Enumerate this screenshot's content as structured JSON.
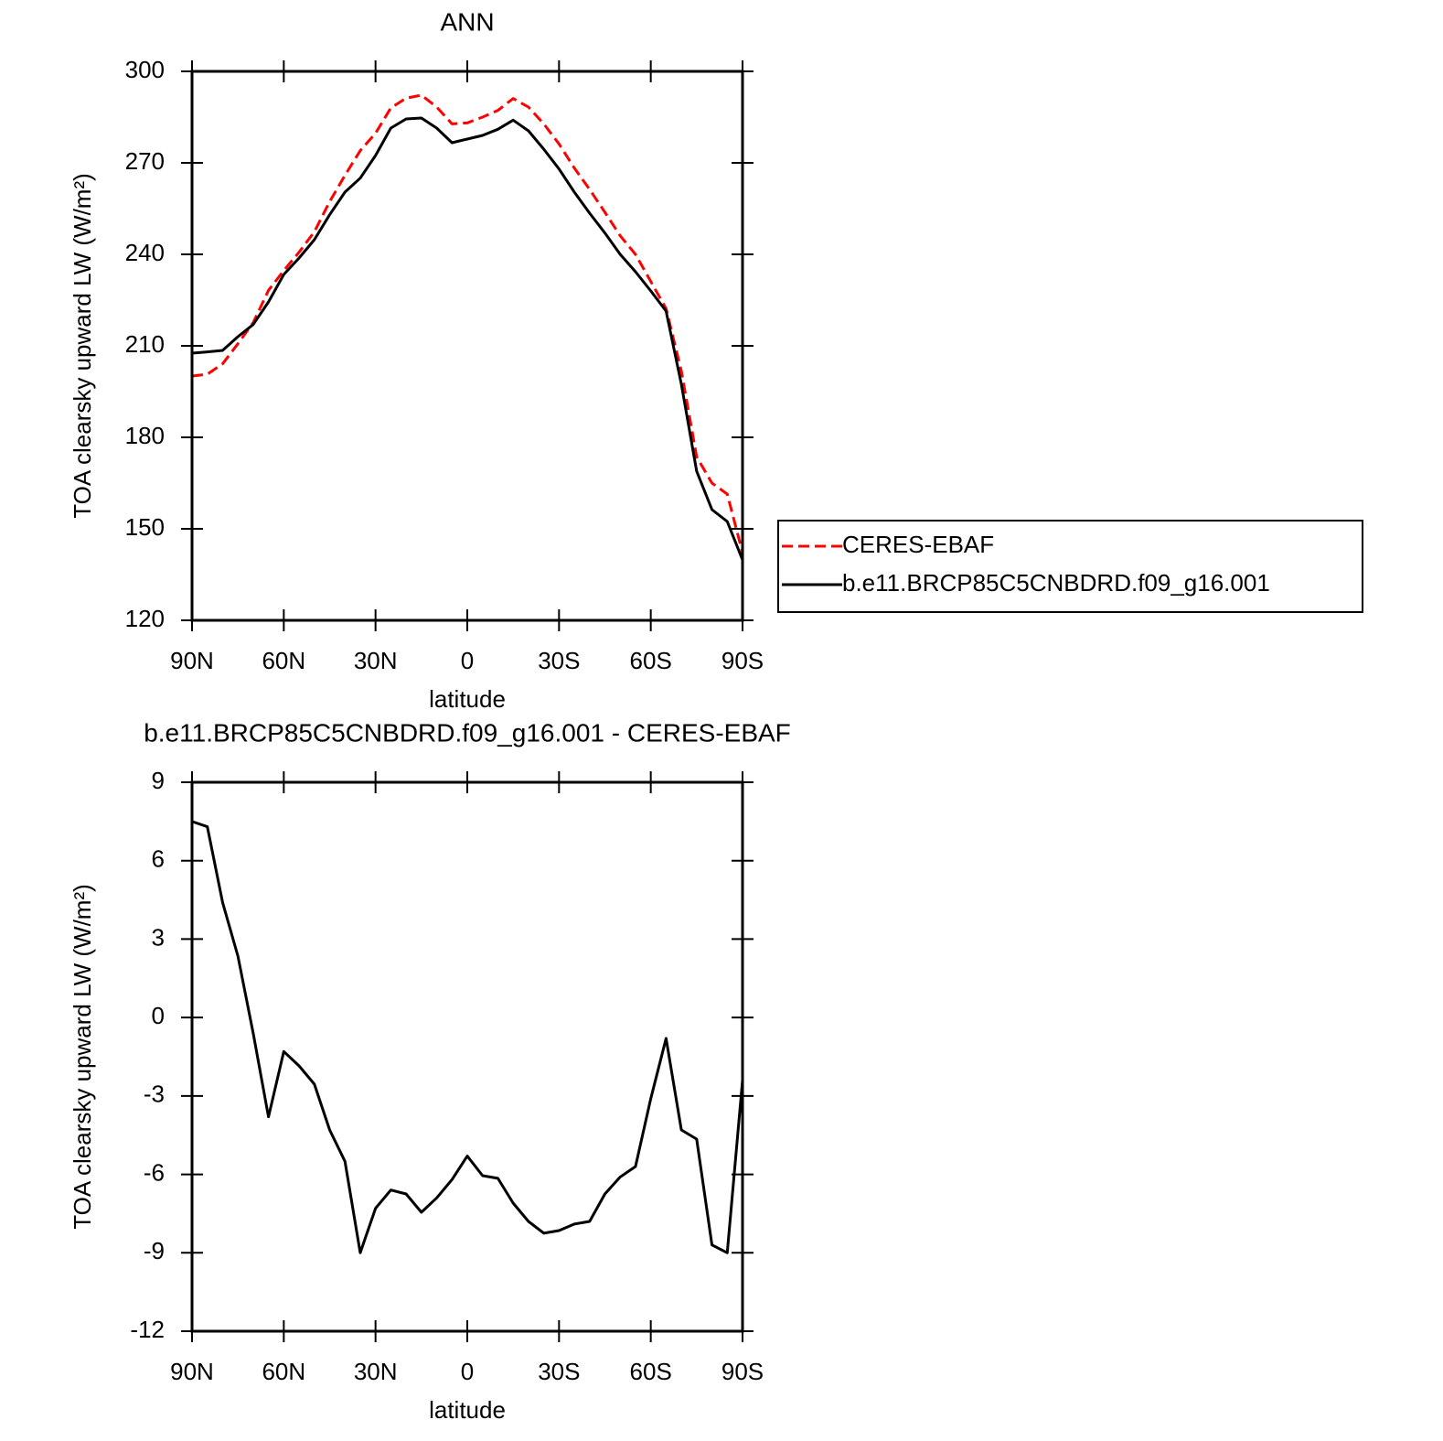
{
  "chart_data": [
    {
      "type": "line",
      "title": "ANN",
      "x_label": "latitude",
      "y_label": "TOA clearsky upward LW (W/m²)",
      "x": [
        90,
        85,
        80,
        75,
        70,
        65,
        60,
        55,
        50,
        45,
        40,
        35,
        30,
        25,
        20,
        15,
        10,
        5,
        0,
        -5,
        -10,
        -15,
        -20,
        -25,
        -30,
        -35,
        -40,
        -45,
        -50,
        -55,
        -60,
        -65,
        -70,
        -75,
        -80,
        -85,
        -90
      ],
      "xlim": [
        90,
        -90
      ],
      "xticks": [
        {
          "value": 90,
          "label": "90N"
        },
        {
          "value": 60,
          "label": "60N"
        },
        {
          "value": 30,
          "label": "30N"
        },
        0,
        {
          "value": -30,
          "label": "30S"
        },
        {
          "value": -60,
          "label": "60S"
        },
        {
          "value": -90,
          "label": "90S"
        }
      ],
      "ylim": [
        120,
        300
      ],
      "yticks": [
        120,
        150,
        180,
        210,
        240,
        270,
        300
      ],
      "legend": "right",
      "series": [
        {
          "name": "CERES-EBAF",
          "color": "#ff0000",
          "style": "dashed",
          "values": [
            200.1,
            200.7,
            204.1,
            210.7,
            217.6,
            228.2,
            234.7,
            240.7,
            247.4,
            257.3,
            265.9,
            274,
            279.7,
            288,
            291.2,
            292.2,
            288.3,
            282.8,
            283.1,
            285,
            287.2,
            291.1,
            288.3,
            282.8,
            276.2,
            268.3,
            261.3,
            253.8,
            246.1,
            240,
            231.1,
            222.2,
            201.7,
            173.6,
            165,
            161.4,
            142.2
          ]
        },
        {
          "name": "b.e11.BRCP85C5CNBDRD.f09_g16.001",
          "color": "#000000",
          "style": "solid",
          "values": [
            207.6,
            208,
            208.5,
            213,
            217,
            224.4,
            233.4,
            238.8,
            244.8,
            253,
            260.4,
            265,
            272.4,
            281.4,
            284.4,
            284.7,
            281.4,
            276.6,
            277.8,
            279,
            281,
            284,
            280.5,
            274.5,
            268,
            260.4,
            253.5,
            247,
            240,
            234.3,
            228,
            221.4,
            197.4,
            168.9,
            156.3,
            152.4,
            139.8
          ]
        }
      ]
    },
    {
      "type": "line",
      "title": "b.e11.BRCP85C5CNBDRD.f09_g16.001 - CERES-EBAF",
      "x_label": "latitude",
      "y_label": "TOA clearsky upward LW (W/m²)",
      "x": [
        90,
        85,
        80,
        75,
        70,
        65,
        60,
        55,
        50,
        45,
        40,
        35,
        30,
        25,
        20,
        15,
        10,
        5,
        0,
        -5,
        -10,
        -15,
        -20,
        -25,
        -30,
        -35,
        -40,
        -45,
        -50,
        -55,
        -60,
        -65,
        -70,
        -75,
        -80,
        -85,
        -90
      ],
      "xlim": [
        90,
        -90
      ],
      "xticks": [
        {
          "value": 90,
          "label": "90N"
        },
        {
          "value": 60,
          "label": "60N"
        },
        {
          "value": 30,
          "label": "30N"
        },
        0,
        {
          "value": -30,
          "label": "30S"
        },
        {
          "value": -60,
          "label": "60S"
        },
        {
          "value": -90,
          "label": "90S"
        }
      ],
      "ylim": [
        -12,
        9
      ],
      "yticks": [
        -12,
        -9,
        -6,
        -3,
        0,
        3,
        6,
        9
      ],
      "series": [
        {
          "color": "#000000",
          "style": "solid",
          "values": [
            7.5,
            7.3,
            4.4,
            2.35,
            -0.6,
            -3.8,
            -1.3,
            -1.85,
            -2.55,
            -4.3,
            -5.5,
            -9,
            -7.3,
            -6.6,
            -6.75,
            -7.45,
            -6.9,
            -6.2,
            -5.3,
            -6.05,
            -6.15,
            -7.1,
            -7.8,
            -8.25,
            -8.15,
            -7.9,
            -7.8,
            -6.75,
            -6.1,
            -5.7,
            -3.1,
            -0.8,
            -4.3,
            -4.65,
            -8.7,
            -9,
            -2.4
          ]
        }
      ]
    }
  ]
}
